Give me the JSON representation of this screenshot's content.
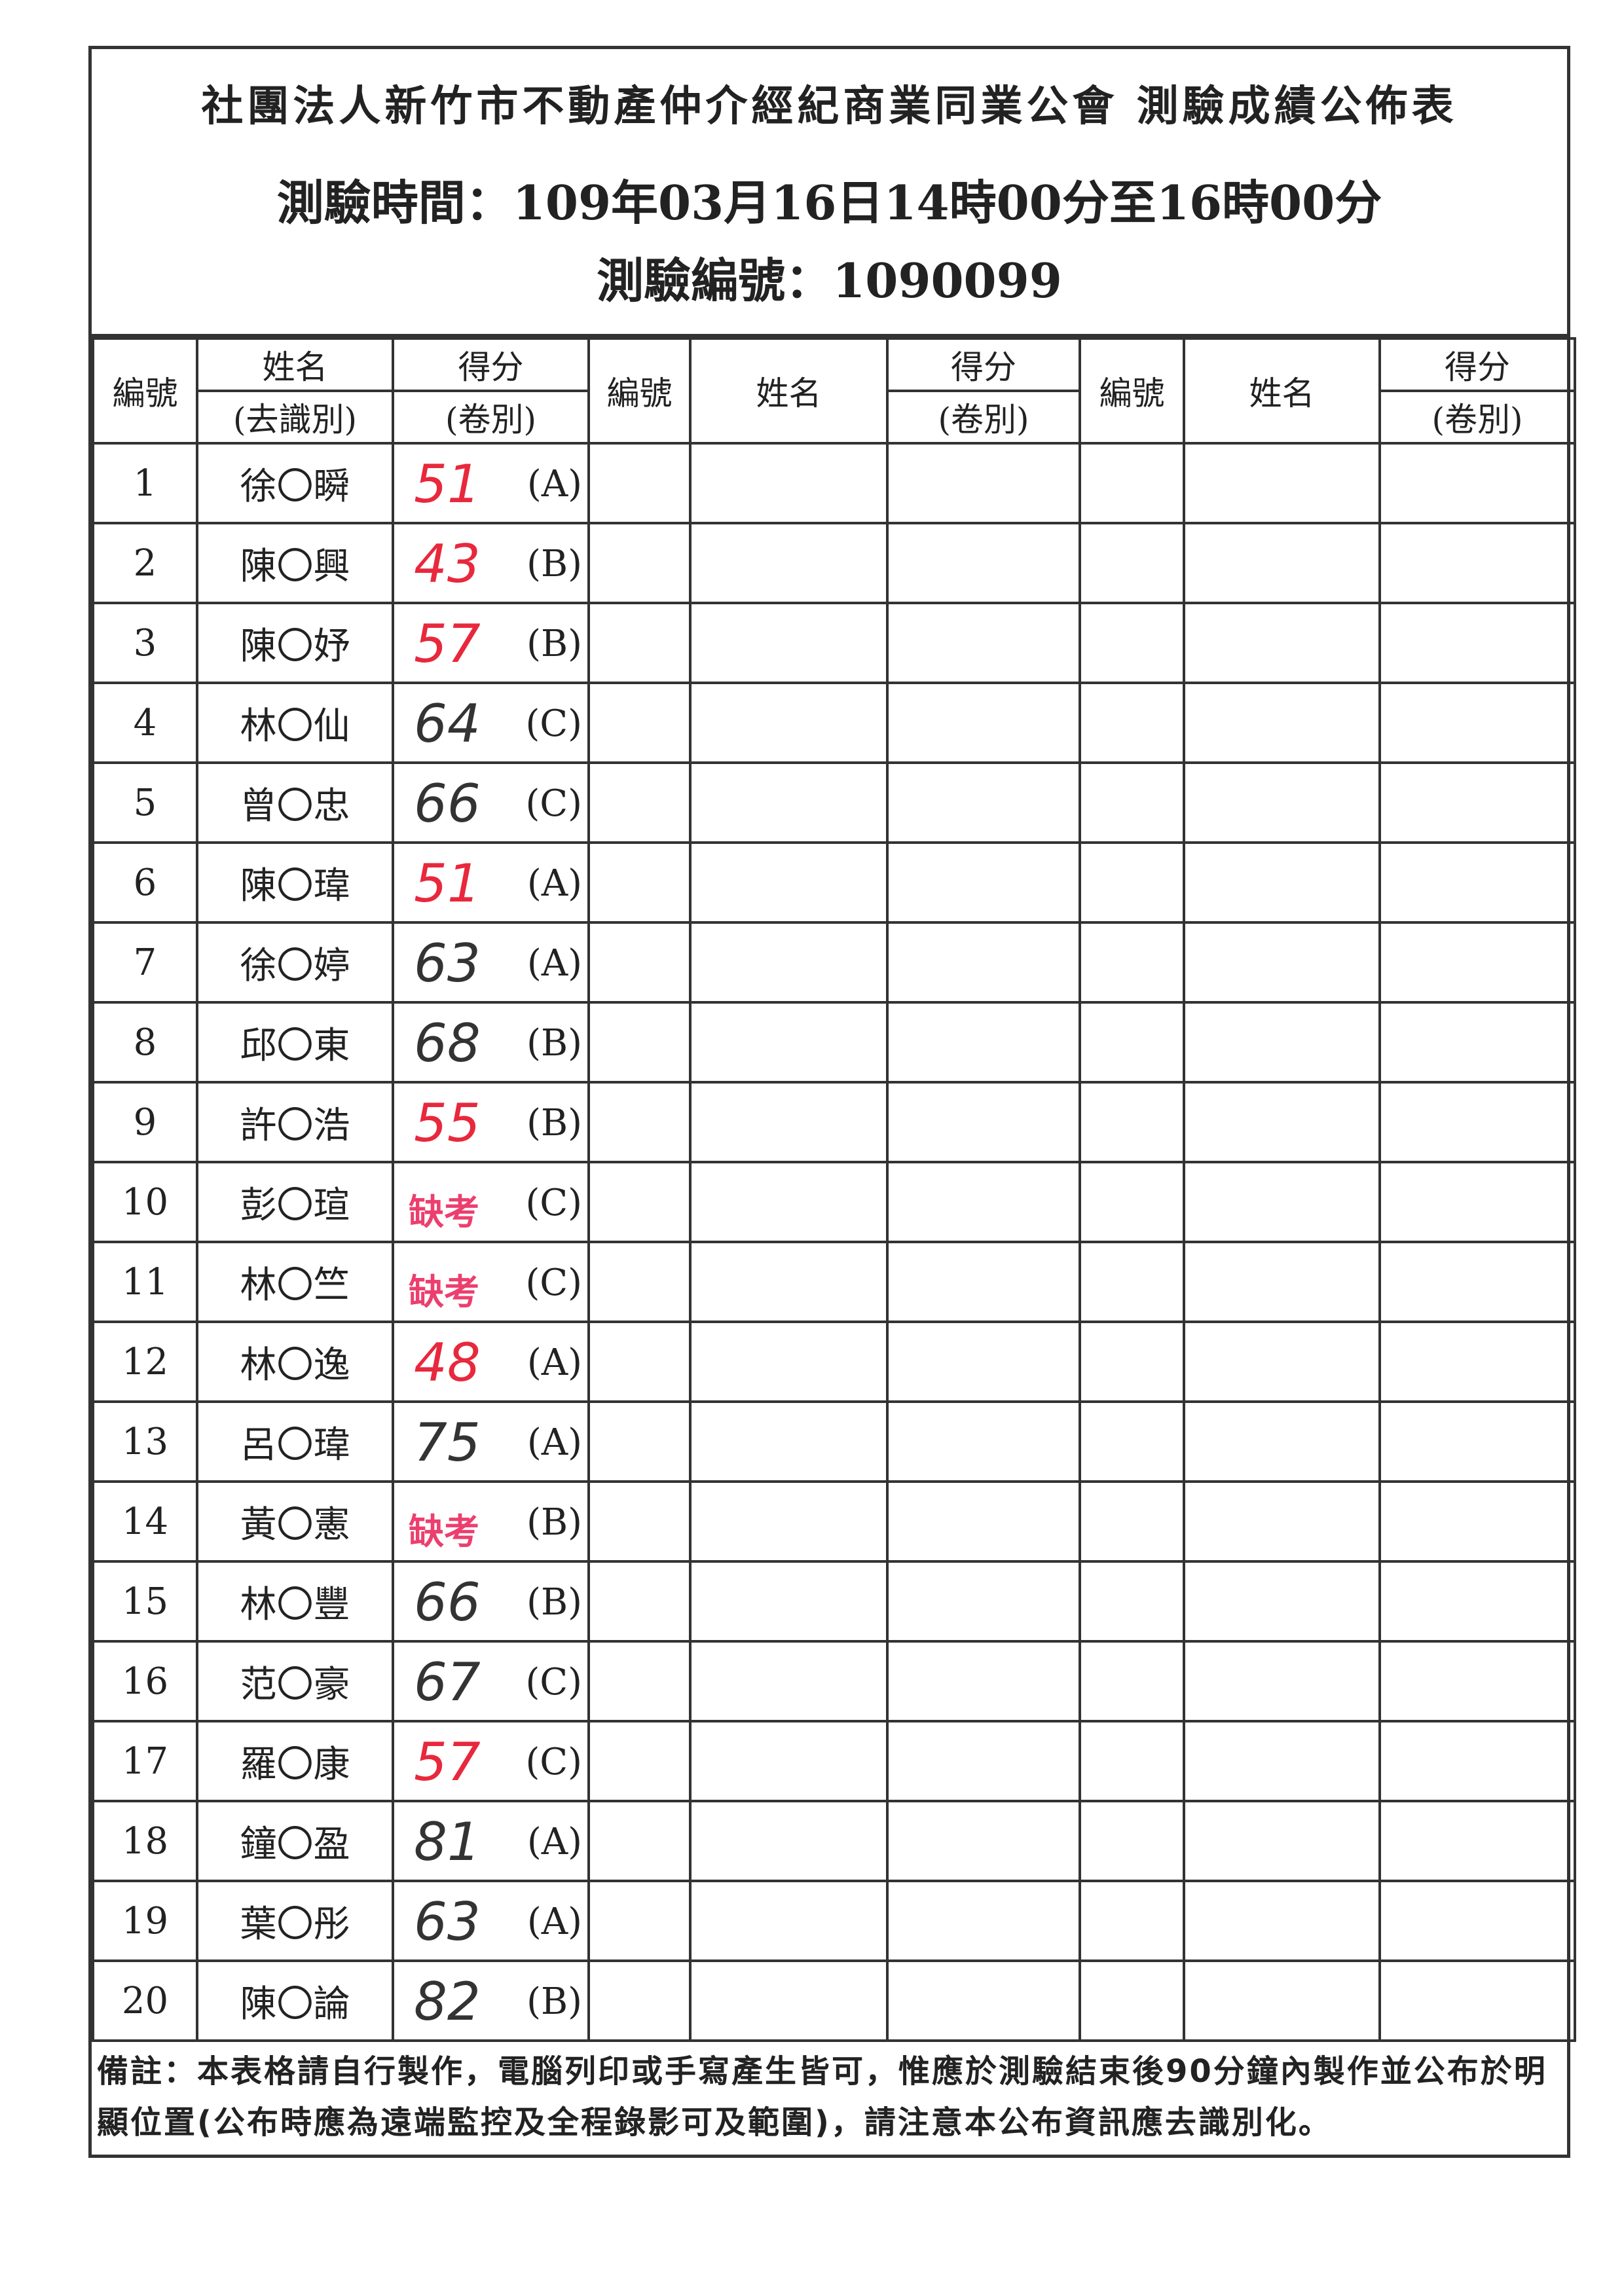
{
  "header": {
    "title": "社團法人新竹市不動產仲介經紀商業同業公會 測驗成績公佈表",
    "exam_time": "測驗時間：109年03月16日14時00分至16時00分",
    "exam_code": "測驗編號：1090099"
  },
  "columns": {
    "no": "編號",
    "name_top": "姓名",
    "name_bottom": "(去識別)",
    "score_top": "得分",
    "score_bottom": "(卷別)",
    "name": "姓名"
  },
  "colors": {
    "fail_score": "#e8283c",
    "pass_score": "#333333",
    "absent": "#ec3f6e"
  },
  "rows": [
    {
      "no": "1",
      "name": "徐〇瞬",
      "score": "51",
      "paper": "(A)",
      "status": "fail"
    },
    {
      "no": "2",
      "name": "陳〇興",
      "score": "43",
      "paper": "(B)",
      "status": "fail"
    },
    {
      "no": "3",
      "name": "陳〇妤",
      "score": "57",
      "paper": "(B)",
      "status": "fail"
    },
    {
      "no": "4",
      "name": "林〇仙",
      "score": "64",
      "paper": "(C)",
      "status": "pass"
    },
    {
      "no": "5",
      "name": "曾〇忠",
      "score": "66",
      "paper": "(C)",
      "status": "pass"
    },
    {
      "no": "6",
      "name": "陳〇瑋",
      "score": "51",
      "paper": "(A)",
      "status": "fail"
    },
    {
      "no": "7",
      "name": "徐〇婷",
      "score": "63",
      "paper": "(A)",
      "status": "pass"
    },
    {
      "no": "8",
      "name": "邱〇東",
      "score": "68",
      "paper": "(B)",
      "status": "pass"
    },
    {
      "no": "9",
      "name": "許〇浩",
      "score": "55",
      "paper": "(B)",
      "status": "fail"
    },
    {
      "no": "10",
      "name": "彭〇瑄",
      "score": "缺考",
      "paper": "(C)",
      "status": "absent"
    },
    {
      "no": "11",
      "name": "林〇竺",
      "score": "缺考",
      "paper": "(C)",
      "status": "absent"
    },
    {
      "no": "12",
      "name": "林〇逸",
      "score": "48",
      "paper": "(A)",
      "status": "fail"
    },
    {
      "no": "13",
      "name": "呂〇瑋",
      "score": "75",
      "paper": "(A)",
      "status": "pass"
    },
    {
      "no": "14",
      "name": "黃〇憲",
      "score": "缺考",
      "paper": "(B)",
      "status": "absent"
    },
    {
      "no": "15",
      "name": "林〇豐",
      "score": "66",
      "paper": "(B)",
      "status": "pass"
    },
    {
      "no": "16",
      "name": "范〇豪",
      "score": "67",
      "paper": "(C)",
      "status": "pass"
    },
    {
      "no": "17",
      "name": "羅〇康",
      "score": "57",
      "paper": "(C)",
      "status": "fail"
    },
    {
      "no": "18",
      "name": "鐘〇盈",
      "score": "81",
      "paper": "(A)",
      "status": "pass"
    },
    {
      "no": "19",
      "name": "葉〇彤",
      "score": "63",
      "paper": "(A)",
      "status": "pass"
    },
    {
      "no": "20",
      "name": "陳〇論",
      "score": "82",
      "paper": "(B)",
      "status": "pass"
    }
  ],
  "note": "備註：本表格請自行製作，電腦列印或手寫產生皆可，惟應於測驗結束後90分鐘內製作並公布於明顯位置(公布時應為遠端監控及全程錄影可及範圍)，請注意本公布資訊應去識別化。"
}
